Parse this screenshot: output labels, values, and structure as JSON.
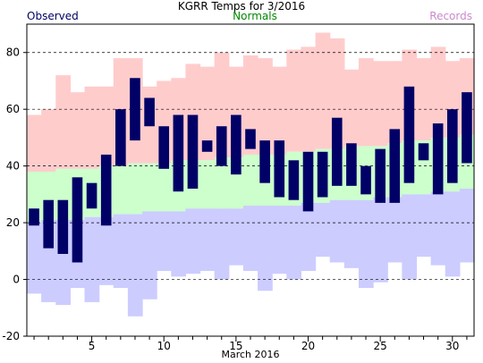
{
  "chart_data": {
    "type": "bar",
    "title": "KGRR Temps for 3/2016",
    "xlabel": "March 2016",
    "ylabel": "",
    "legend": [
      "Observed",
      "Normals",
      "Records"
    ],
    "legend_placement": "top",
    "xlim": [
      1,
      31
    ],
    "ylim": [
      -20,
      90
    ],
    "y_ticks": [
      -20,
      0,
      20,
      40,
      60,
      80
    ],
    "x_ticks": [
      5,
      10,
      15,
      20,
      25,
      30
    ],
    "grid": "horizontal-dashed",
    "days": [
      1,
      2,
      3,
      4,
      5,
      6,
      7,
      8,
      9,
      10,
      11,
      12,
      13,
      14,
      15,
      16,
      17,
      18,
      19,
      20,
      21,
      22,
      23,
      24,
      25,
      26,
      27,
      28,
      29,
      30,
      31
    ],
    "series": [
      {
        "name": "Observed",
        "low": [
          19,
          11,
          9,
          6,
          25,
          19,
          40,
          49,
          54,
          39,
          31,
          32,
          45,
          40,
          37,
          46,
          34,
          29,
          28,
          24,
          29,
          33,
          33,
          30,
          27,
          27,
          34,
          42,
          30,
          34,
          41
        ],
        "high": [
          25,
          28,
          28,
          36,
          34,
          44,
          60,
          71,
          64,
          54,
          58,
          58,
          49,
          54,
          58,
          53,
          49,
          49,
          42,
          45,
          45,
          57,
          48,
          40,
          46,
          53,
          68,
          48,
          55,
          60,
          66
        ]
      },
      {
        "name": "Normals",
        "low": [
          20,
          21,
          21,
          21,
          22,
          22,
          23,
          23,
          24,
          24,
          24,
          25,
          25,
          25,
          25,
          26,
          26,
          26,
          26,
          27,
          27,
          28,
          28,
          28,
          29,
          29,
          30,
          30,
          31,
          31,
          32
        ],
        "high": [
          38,
          38,
          39,
          39,
          39,
          40,
          40,
          41,
          41,
          41,
          42,
          42,
          42,
          43,
          43,
          44,
          44,
          44,
          45,
          45,
          46,
          46,
          47,
          47,
          47,
          48,
          49,
          49,
          50,
          50,
          51
        ]
      },
      {
        "name": "Records",
        "low": [
          -5,
          -8,
          -9,
          -3,
          -8,
          -2,
          -3,
          -13,
          -7,
          3,
          1,
          2,
          3,
          0,
          5,
          3,
          -4,
          2,
          0,
          3,
          8,
          6,
          4,
          -3,
          -1,
          6,
          0,
          8,
          5,
          1,
          6
        ],
        "high": [
          58,
          60,
          72,
          66,
          68,
          68,
          78,
          78,
          68,
          70,
          71,
          76,
          75,
          80,
          75,
          79,
          78,
          75,
          81,
          82,
          87,
          85,
          74,
          78,
          77,
          77,
          81,
          78,
          82,
          77,
          78
        ]
      }
    ],
    "colors": {
      "observed": "#000066",
      "normals": "#ccffcc",
      "records_high": "#ffcccc",
      "records_low": "#ccccff",
      "observed_legend": "#000066",
      "normals_legend": "#008800",
      "records_legend": "#cc88cc"
    }
  }
}
